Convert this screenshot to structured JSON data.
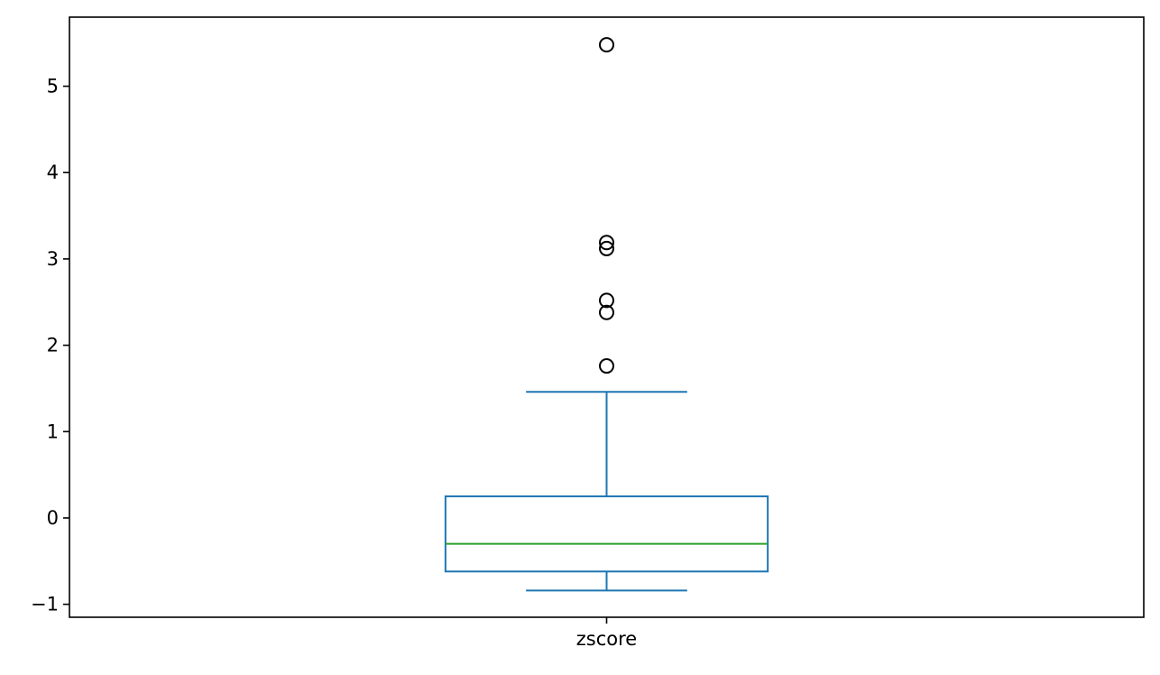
{
  "chart_data": {
    "type": "box",
    "title": "",
    "xlabel": "",
    "ylabel": "",
    "categories": [
      "zscore"
    ],
    "boxes": [
      {
        "name": "zscore",
        "whisker_low": -0.84,
        "q1": -0.62,
        "median": -0.3,
        "q3": 0.25,
        "whisker_high": 1.46,
        "outliers": [
          5.48,
          3.19,
          3.12,
          2.52,
          2.38,
          1.76
        ]
      }
    ],
    "ylim": [
      -1.15,
      5.8
    ],
    "yticks": [
      -1,
      0,
      1,
      2,
      3,
      4,
      5
    ],
    "ytick_labels": [
      "−1",
      "0",
      "1",
      "2",
      "3",
      "4",
      "5"
    ],
    "grid": false,
    "legend": "none",
    "colors": {
      "box": "#1f77b4",
      "median": "#2ca02c",
      "outlier": "#000000",
      "axes": "#000000"
    }
  }
}
